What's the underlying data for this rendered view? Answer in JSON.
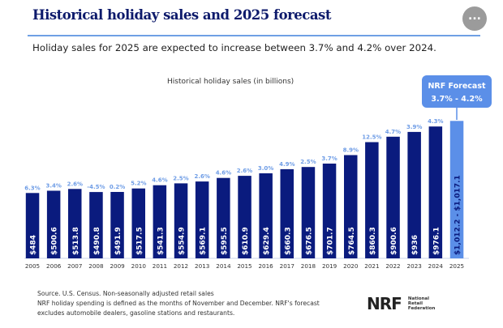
{
  "header": {
    "title": "Historical holiday sales and 2025 forecast",
    "more_button_label": "...",
    "subtitle": "Holiday sales for 2025 are expected to increase between 3.7% and 4.2% over 2024."
  },
  "callout": {
    "line1": "NRF Forecast",
    "line2": "3.7% - 4.2%"
  },
  "footnote": {
    "line1": "Source. U.S. Census. Non-seasonally adjusted retail sales",
    "line2": "NRF holiday spending is defined as the months of November and December. NRF's forecast",
    "line3": "excludes automobile dealers, gasoline stations and restaurants."
  },
  "logo": {
    "mark": "NRF",
    "line1": "National",
    "line2": "Retail",
    "line3": "Federation"
  },
  "colors": {
    "historical_bar": "#0a1b7e",
    "forecast_bar": "#5b8fe8",
    "growth_label": "#6f9de6",
    "bar_label": "#ffffff",
    "forecast_bar_label": "#0a1b7e"
  },
  "chart_data": {
    "type": "bar",
    "title": "Historical holiday sales (in billions)",
    "xlabel": "",
    "ylabel": "",
    "ylim": [
      0,
      1100
    ],
    "grid": false,
    "legend": "none",
    "categories": [
      "2005",
      "2006",
      "2007",
      "2008",
      "2009",
      "2010",
      "2011",
      "2012",
      "2013",
      "2014",
      "2015",
      "2016",
      "2017",
      "2018",
      "2019",
      "2020",
      "2021",
      "2022",
      "2023",
      "2024",
      "2025"
    ],
    "values": [
      484,
      500.6,
      513.8,
      490.8,
      491.9,
      517.5,
      541.3,
      554.9,
      569.1,
      595.5,
      610.9,
      629.4,
      660.3,
      676.5,
      701.7,
      764.5,
      860.3,
      900.6,
      936,
      976.1,
      1017.1
    ],
    "value_labels": [
      "$484",
      "$500.6",
      "$513.8",
      "$490.8",
      "$491.9",
      "$517.5",
      "$541.3",
      "$554.9",
      "$569.1",
      "$595.5",
      "$610.9",
      "$629.4",
      "$660.3",
      "$676.5",
      "$701.7",
      "$764.5",
      "$860.3",
      "$900.6",
      "$936",
      "$976.1",
      "$1,012.2 - $1,017.1"
    ],
    "growth_labels": [
      "6.3%",
      "3.4%",
      "2.6%",
      "-4.5%",
      "0.2%",
      "5.2%",
      "4.6%",
      "2.5%",
      "2.6%",
      "4.6%",
      "2.6%",
      "3.0%",
      "4.9%",
      "2.5%",
      "3.7%",
      "8.9%",
      "12.5%",
      "4.7%",
      "3.9%",
      "4.3%",
      ""
    ],
    "forecast": {
      "category": "2025",
      "low": 1012.2,
      "high": 1017.1,
      "growth_low_pct": 3.7,
      "growth_high_pct": 4.2
    }
  }
}
